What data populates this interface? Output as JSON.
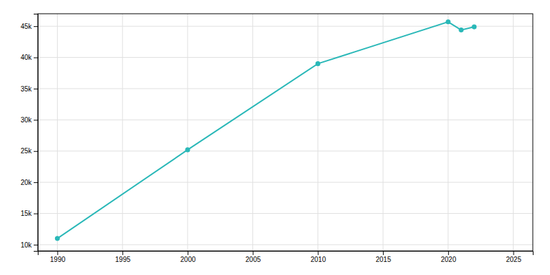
{
  "chart_data": {
    "type": "line",
    "x": [
      1990,
      2000,
      2010,
      2020,
      2021,
      2022
    ],
    "values": [
      11000,
      25200,
      39000,
      45700,
      44400,
      44900
    ],
    "color": "#2ab8b8",
    "marker": "circle",
    "xlim": [
      1988.5,
      2026.5
    ],
    "ylim": [
      9000,
      47000
    ],
    "xticks": [
      1990,
      1995,
      2000,
      2005,
      2010,
      2015,
      2020,
      2025
    ],
    "yticks": [
      {
        "value": 10000,
        "label": "10k"
      },
      {
        "value": 15000,
        "label": "15k"
      },
      {
        "value": 20000,
        "label": "20k"
      },
      {
        "value": 25000,
        "label": "25k"
      },
      {
        "value": 30000,
        "label": "30k"
      },
      {
        "value": 35000,
        "label": "35k"
      },
      {
        "value": 40000,
        "label": "40k"
      },
      {
        "value": 45000,
        "label": "45k"
      }
    ],
    "grid": true
  }
}
